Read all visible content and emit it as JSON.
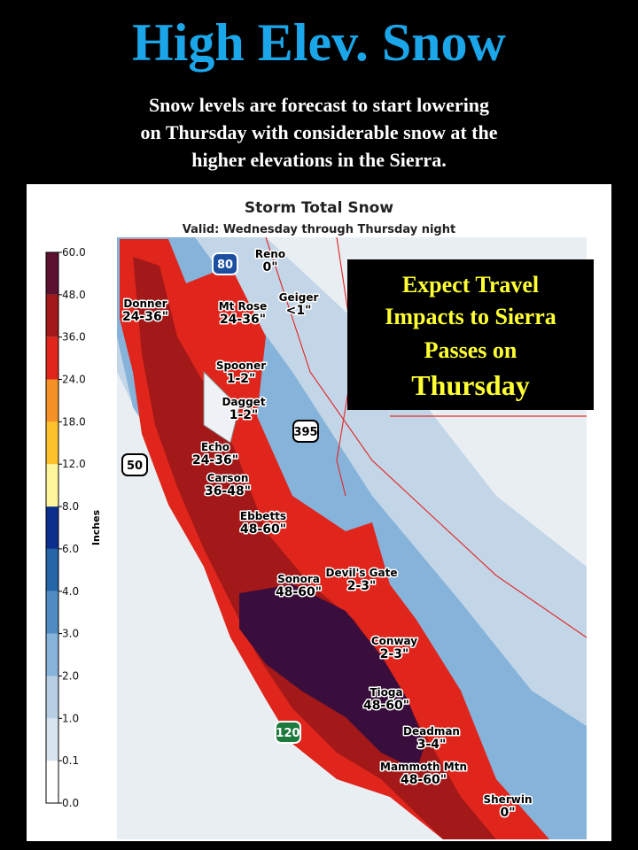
{
  "header": {
    "title": "High Elev. Snow",
    "subtitle": [
      "Snow levels are forecast to start lowering",
      "on Thursday with considerable snow at the",
      "higher elevations in the Sierra."
    ]
  },
  "map": {
    "title": "Storm Total Snow",
    "valid": "Valid: Wednesday through Thursday night",
    "colorbar": {
      "label": "Inches",
      "ticks": [
        {
          "value": 0,
          "label": "0.0"
        },
        {
          "value": 0.1,
          "label": "0.1"
        },
        {
          "value": 1,
          "label": "1.0"
        },
        {
          "value": 2,
          "label": "2.0"
        },
        {
          "value": 3,
          "label": "3.0"
        },
        {
          "value": 4,
          "label": "4.0"
        },
        {
          "value": 6,
          "label": "6.0"
        },
        {
          "value": 8,
          "label": "8.0"
        },
        {
          "value": 12,
          "label": "12.0"
        },
        {
          "value": 18,
          "label": "18.0"
        },
        {
          "value": 24,
          "label": "24.0"
        },
        {
          "value": 36,
          "label": "36.0"
        },
        {
          "value": 48,
          "label": "48.0"
        },
        {
          "value": 60,
          "label": "60.0"
        }
      ],
      "colors": [
        "#ffffff",
        "#d8e4ef",
        "#b7cfe5",
        "#86b3da",
        "#4f8cc3",
        "#2465a8",
        "#0b2f8c",
        "#fff59c",
        "#fdc22b",
        "#f69225",
        "#e0261c",
        "#a31818",
        "#5c1130"
      ]
    },
    "locations": [
      {
        "name": "Reno",
        "amount": "0\""
      },
      {
        "name": "Donner",
        "amount": "24-36\""
      },
      {
        "name": "Mt Rose",
        "amount": "24-36\""
      },
      {
        "name": "Geiger",
        "amount": "<1\""
      },
      {
        "name": "Spooner",
        "amount": "1-2\""
      },
      {
        "name": "Dagget",
        "amount": "1-2\""
      },
      {
        "name": "Echo",
        "amount": "24-36\""
      },
      {
        "name": "Carson",
        "amount": "36-48\""
      },
      {
        "name": "Ebbetts",
        "amount": "48-60\""
      },
      {
        "name": "Devil's Gate",
        "amount": "2-3\""
      },
      {
        "name": "Sonora",
        "amount": "48-60\""
      },
      {
        "name": "Conway",
        "amount": "2-3\""
      },
      {
        "name": "Tioga",
        "amount": "48-60\""
      },
      {
        "name": "Deadman",
        "amount": "3-4\""
      },
      {
        "name": "Mammoth Mtn",
        "amount": "48-60\""
      },
      {
        "name": "Sherwin",
        "amount": "0\""
      }
    ],
    "highways": [
      "80",
      "50",
      "395",
      "120"
    ]
  },
  "callout": {
    "lines": [
      "Expect Travel",
      "Impacts to Sierra",
      "Passes on",
      "Thursday"
    ]
  }
}
